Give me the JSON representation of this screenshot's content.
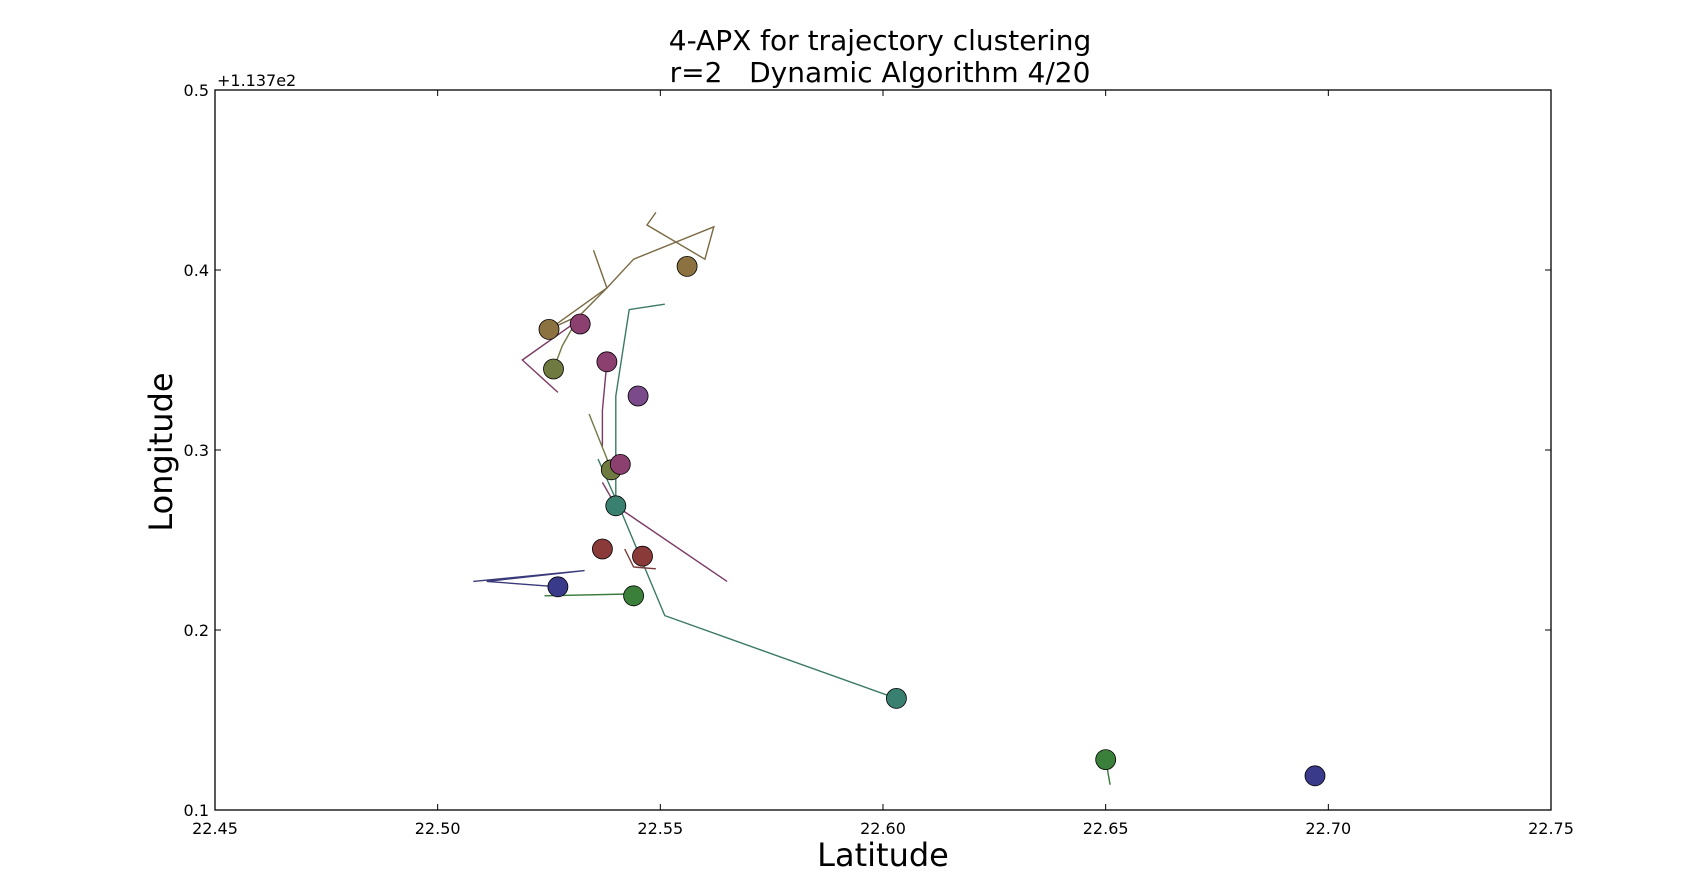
{
  "chart_data": {
    "type": "scatter",
    "title": "4-APX for trajectory clustering",
    "subtitle": "r=2   Dynamic Algorithm 4/20",
    "xlabel": "Latitude",
    "ylabel": "Longitude",
    "y_offset_label": "+1.137e2",
    "xlim": [
      22.45,
      22.75
    ],
    "ylim": [
      0.1,
      0.5
    ],
    "x_ticks": [
      "22.45",
      "22.50",
      "22.55",
      "22.60",
      "22.65",
      "22.70",
      "22.75"
    ],
    "y_ticks": [
      "0.1",
      "0.2",
      "0.3",
      "0.4",
      "0.5"
    ],
    "grid": false,
    "legend": "none",
    "trajectories": [
      {
        "color": "#7a6a44",
        "points": [
          [
            22.549,
            0.432
          ],
          [
            22.547,
            0.425
          ],
          [
            22.56,
            0.406
          ],
          [
            22.562,
            0.424
          ],
          [
            22.544,
            0.406
          ],
          [
            22.538,
            0.39
          ],
          [
            22.525,
            0.367
          ]
        ]
      },
      {
        "color": "#7a6a44",
        "points": [
          [
            22.535,
            0.411
          ],
          [
            22.538,
            0.39
          ],
          [
            22.532,
            0.375
          ],
          [
            22.525,
            0.367
          ]
        ]
      },
      {
        "color": "#6e7a44",
        "points": [
          [
            22.531,
            0.371
          ],
          [
            22.528,
            0.358
          ],
          [
            22.526,
            0.345
          ]
        ]
      },
      {
        "color": "#7a3a64",
        "points": [
          [
            22.531,
            0.371
          ],
          [
            22.519,
            0.35
          ],
          [
            22.527,
            0.332
          ]
        ]
      },
      {
        "color": "#7a3a64",
        "points": [
          [
            22.538,
            0.349
          ],
          [
            22.537,
            0.322
          ],
          [
            22.537,
            0.302
          ]
        ]
      },
      {
        "color": "#3a7a64",
        "points": [
          [
            22.551,
            0.381
          ],
          [
            22.543,
            0.378
          ],
          [
            22.54,
            0.33
          ],
          [
            22.54,
            0.269
          ]
        ]
      },
      {
        "color": "#6e7a44",
        "points": [
          [
            22.534,
            0.32
          ],
          [
            22.539,
            0.289
          ]
        ]
      },
      {
        "color": "#7a3a64",
        "points": [
          [
            22.537,
            0.282
          ],
          [
            22.54,
            0.269
          ],
          [
            22.565,
            0.227
          ]
        ]
      },
      {
        "color": "#3a7a64",
        "points": [
          [
            22.536,
            0.295
          ],
          [
            22.541,
            0.267
          ],
          [
            22.551,
            0.208
          ],
          [
            22.603,
            0.162
          ]
        ]
      },
      {
        "color": "#7a3a3a",
        "points": [
          [
            22.542,
            0.245
          ],
          [
            22.544,
            0.235
          ],
          [
            22.549,
            0.234
          ]
        ]
      },
      {
        "color": "#3a3a7a",
        "points": [
          [
            22.508,
            0.227
          ],
          [
            22.533,
            0.233
          ],
          [
            22.511,
            0.227
          ],
          [
            22.527,
            0.224
          ]
        ]
      },
      {
        "color": "#3a7a3a",
        "points": [
          [
            22.524,
            0.219
          ],
          [
            22.543,
            0.22
          ]
        ]
      },
      {
        "color": "#3a7a3a",
        "points": [
          [
            22.65,
            0.128
          ],
          [
            22.651,
            0.114
          ]
        ]
      }
    ],
    "markers": [
      {
        "x": 22.556,
        "y": 0.402,
        "color": "#8b7240"
      },
      {
        "x": 22.525,
        "y": 0.367,
        "color": "#8b7240"
      },
      {
        "x": 22.532,
        "y": 0.37,
        "color": "#8b4070"
      },
      {
        "x": 22.526,
        "y": 0.345,
        "color": "#6e7a40"
      },
      {
        "x": 22.538,
        "y": 0.349,
        "color": "#8b4070"
      },
      {
        "x": 22.545,
        "y": 0.33,
        "color": "#7a4a8b"
      },
      {
        "x": 22.539,
        "y": 0.289,
        "color": "#6e7a40"
      },
      {
        "x": 22.541,
        "y": 0.292,
        "color": "#8b4070"
      },
      {
        "x": 22.54,
        "y": 0.269,
        "color": "#3a8070"
      },
      {
        "x": 22.537,
        "y": 0.245,
        "color": "#8b3a3a"
      },
      {
        "x": 22.546,
        "y": 0.241,
        "color": "#8b3a3a"
      },
      {
        "x": 22.527,
        "y": 0.224,
        "color": "#3a3a8b"
      },
      {
        "x": 22.544,
        "y": 0.219,
        "color": "#3a803a"
      },
      {
        "x": 22.603,
        "y": 0.162,
        "color": "#3a8070"
      },
      {
        "x": 22.65,
        "y": 0.128,
        "color": "#3a803a"
      },
      {
        "x": 22.697,
        "y": 0.119,
        "color": "#3a3a8b"
      }
    ]
  }
}
